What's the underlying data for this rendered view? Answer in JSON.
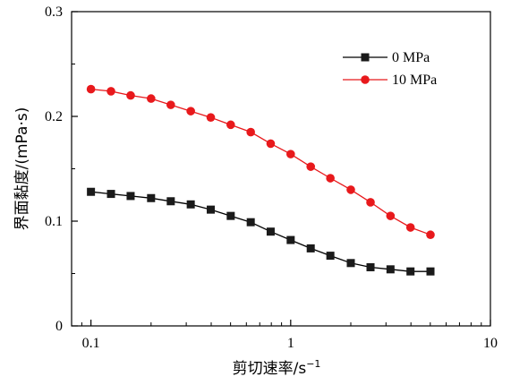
{
  "chart_data": {
    "type": "line",
    "xscale": "log",
    "xlim": [
      0.08,
      10
    ],
    "ylim": [
      0,
      0.3
    ],
    "xticks": [
      0.1,
      1,
      10
    ],
    "xtick_labels": [
      "0.1",
      "1",
      "10"
    ],
    "yticks": [
      0,
      0.1,
      0.2,
      0.3
    ],
    "ytick_labels": [
      "0",
      "0.1",
      "0.2",
      "0.3"
    ],
    "xlabel": "剪切速率/s",
    "xlabel_sup": "−1",
    "ylabel": "界面黏度/(mPa·s)",
    "title": "",
    "grid": false,
    "legend_position": "top-right",
    "series": [
      {
        "name": "0 MPa",
        "color": "#000000",
        "marker": "square",
        "x": [
          0.1,
          0.126,
          0.158,
          0.2,
          0.251,
          0.316,
          0.398,
          0.501,
          0.631,
          0.794,
          1.0,
          1.26,
          1.58,
          2.0,
          2.51,
          3.16,
          3.98,
          5.01
        ],
        "y": [
          0.128,
          0.126,
          0.124,
          0.122,
          0.119,
          0.116,
          0.111,
          0.105,
          0.099,
          0.09,
          0.082,
          0.074,
          0.067,
          0.06,
          0.056,
          0.054,
          0.052,
          0.052
        ]
      },
      {
        "name": "10 MPa",
        "color": "#e8191c",
        "marker": "circle",
        "x": [
          0.1,
          0.126,
          0.158,
          0.2,
          0.251,
          0.316,
          0.398,
          0.501,
          0.631,
          0.794,
          1.0,
          1.26,
          1.58,
          2.0,
          2.51,
          3.16,
          3.98,
          5.01
        ],
        "y": [
          0.226,
          0.224,
          0.22,
          0.217,
          0.211,
          0.205,
          0.199,
          0.192,
          0.185,
          0.174,
          0.164,
          0.152,
          0.141,
          0.13,
          0.118,
          0.105,
          0.094,
          0.087
        ]
      }
    ]
  }
}
